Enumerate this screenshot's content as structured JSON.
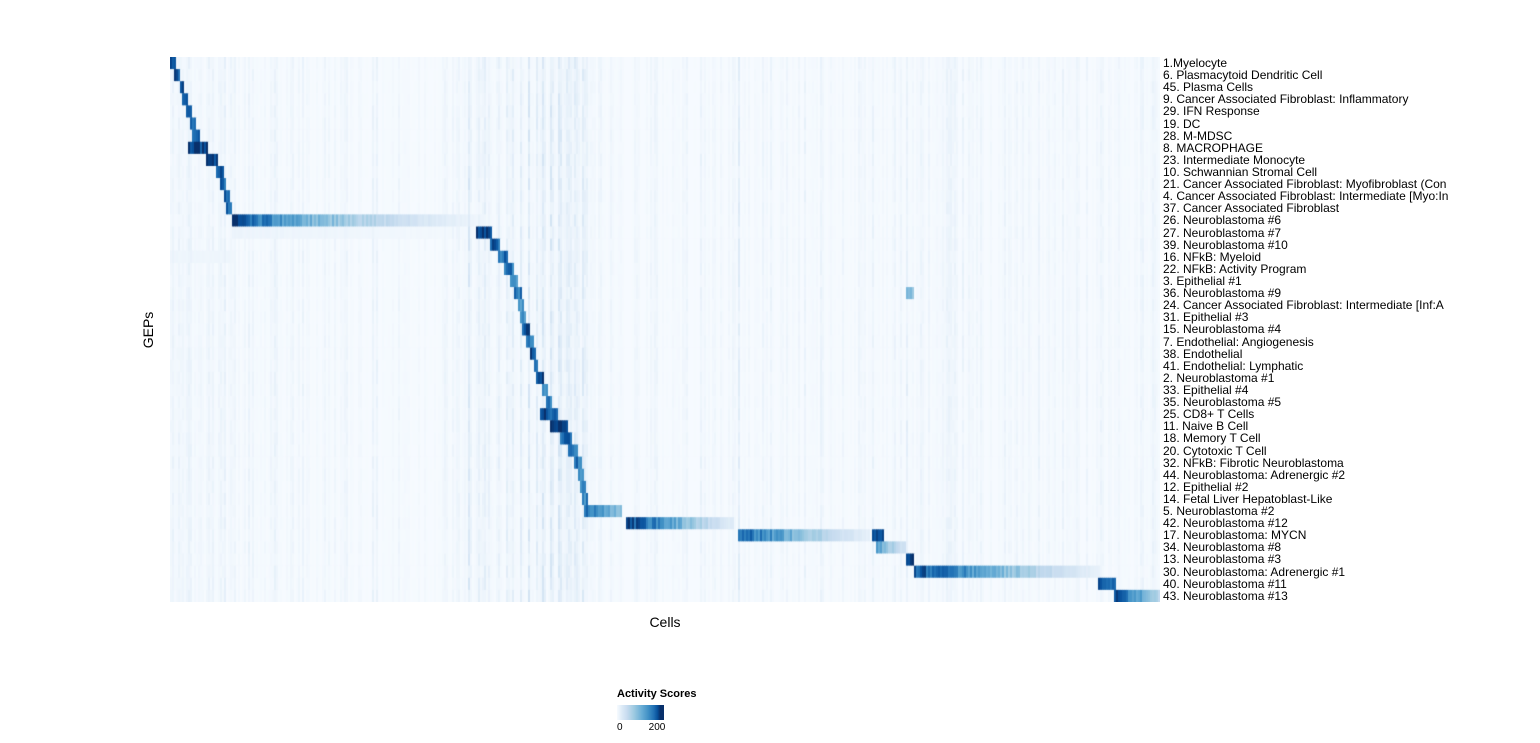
{
  "figure": {
    "background": "#ffffff"
  },
  "chart_data": {
    "type": "heatmap",
    "title": "",
    "xlabel": "Cells",
    "ylabel": "GEPs",
    "legend_position": "bottom",
    "colorbar": {
      "title": "Activity Scores",
      "min": 0,
      "max": 200,
      "ticks": [
        "0",
        "200"
      ]
    },
    "colormap": [
      "#f7fbff",
      "#deebf7",
      "#c6dbef",
      "#9ecae1",
      "#6baed6",
      "#4292c6",
      "#2171b5",
      "#08519c",
      "#08306b"
    ],
    "colormap_positions": [
      0,
      0.18,
      0.33,
      0.46,
      0.58,
      0.7,
      0.8,
      0.9,
      1.0
    ],
    "colorbar_gradient_positions": [
      0,
      0.1,
      0.22,
      0.36,
      0.52,
      0.66,
      0.78,
      0.86,
      0.92
    ],
    "rows": [
      {
        "label": "1.Myelocyte",
        "blocks": [
          [
            0.0,
            0.007,
            210,
            210
          ]
        ]
      },
      {
        "label": "6. Plasmacytoid Dendritic Cell",
        "blocks": [
          [
            0.005,
            0.011,
            200,
            200
          ]
        ]
      },
      {
        "label": "45. Plasma Cells",
        "blocks": [
          [
            0.01,
            0.014,
            210,
            210
          ]
        ]
      },
      {
        "label": "9. Cancer Associated Fibroblast: Inflammatory",
        "blocks": [
          [
            0.012,
            0.019,
            185,
            185
          ]
        ]
      },
      {
        "label": "29. IFN Response",
        "blocks": [
          [
            0.016,
            0.023,
            195,
            195
          ]
        ]
      },
      {
        "label": "19. DC",
        "blocks": [
          [
            0.02,
            0.027,
            185,
            185
          ]
        ]
      },
      {
        "label": "28. M-MDSC",
        "blocks": [
          [
            0.023,
            0.031,
            195,
            195
          ]
        ]
      },
      {
        "label": "8. MACROPHAGE",
        "blocks": [
          [
            0.018,
            0.038,
            215,
            215
          ]
        ]
      },
      {
        "label": "23. Intermediate Monocyte",
        "blocks": [
          [
            0.036,
            0.049,
            205,
            205
          ]
        ]
      },
      {
        "label": "10. Schwannian Stromal Cell",
        "blocks": [
          [
            0.047,
            0.054,
            195,
            195
          ]
        ]
      },
      {
        "label": "21. Cancer Associated Fibroblast: Myofibroblast (Con",
        "blocks": [
          [
            0.051,
            0.057,
            185,
            185
          ]
        ]
      },
      {
        "label": "4. Cancer Associated Fibroblast: Intermediate [Myo:In",
        "blocks": [
          [
            0.054,
            0.06,
            185,
            185
          ]
        ]
      },
      {
        "label": "37. Cancer Associated Fibroblast",
        "blocks": [
          [
            0.057,
            0.063,
            195,
            195
          ]
        ]
      },
      {
        "label": "26. Neuroblastoma #6",
        "blocks": [
          [
            0.062,
            0.12,
            215,
            140
          ],
          [
            0.12,
            0.315,
            140,
            12
          ]
        ]
      },
      {
        "label": "27. Neuroblastoma #7",
        "blocks": [
          [
            0.062,
            0.31,
            18,
            6
          ],
          [
            0.31,
            0.326,
            210,
            210
          ]
        ]
      },
      {
        "label": "39. Neuroblastoma #10",
        "blocks": [
          [
            0.323,
            0.334,
            195,
            195
          ]
        ]
      },
      {
        "label": "16. NFkB: Myeloid",
        "blocks": [
          [
            0.0,
            0.062,
            14,
            14
          ],
          [
            0.331,
            0.341,
            185,
            185
          ]
        ]
      },
      {
        "label": "22. NFkB: Activity Program",
        "blocks": [
          [
            0.338,
            0.347,
            175,
            175
          ]
        ]
      },
      {
        "label": "3. Epithelial #1",
        "blocks": [
          [
            0.344,
            0.351,
            155,
            155
          ]
        ]
      },
      {
        "label": "36. Neuroblastoma #9",
        "blocks": [
          [
            0.348,
            0.355,
            175,
            175
          ],
          [
            0.744,
            0.751,
            110,
            110
          ]
        ]
      },
      {
        "label": "24. Cancer Associated Fibroblast: Intermediate [Inf:A",
        "blocks": [
          [
            0.351,
            0.357,
            145,
            145
          ]
        ]
      },
      {
        "label": "31. Epithelial #3",
        "blocks": [
          [
            0.354,
            0.359,
            155,
            155
          ]
        ]
      },
      {
        "label": "15. Neuroblastoma #4",
        "blocks": [
          [
            0.356,
            0.363,
            205,
            205
          ]
        ]
      },
      {
        "label": "7. Endothelial: Angiogenesis",
        "blocks": [
          [
            0.36,
            0.367,
            175,
            175
          ]
        ]
      },
      {
        "label": "38. Endothelial",
        "blocks": [
          [
            0.363,
            0.37,
            205,
            205
          ]
        ]
      },
      {
        "label": "41. Endothelial: Lymphatic",
        "blocks": [
          [
            0.367,
            0.372,
            185,
            185
          ]
        ]
      },
      {
        "label": "2. Neuroblastoma #1",
        "blocks": [
          [
            0.37,
            0.377,
            215,
            215
          ]
        ]
      },
      {
        "label": "33. Epithelial #4",
        "blocks": [
          [
            0.375,
            0.381,
            165,
            165
          ]
        ]
      },
      {
        "label": "35. Neuroblastoma #5",
        "blocks": [
          [
            0.379,
            0.385,
            175,
            175
          ]
        ]
      },
      {
        "label": "25. CD8+ T Cells",
        "blocks": [
          [
            0.373,
            0.391,
            205,
            205
          ]
        ]
      },
      {
        "label": "11. Naive B Cell",
        "blocks": [
          [
            0.383,
            0.403,
            215,
            215
          ]
        ]
      },
      {
        "label": "18. Memory T Cell",
        "blocks": [
          [
            0.393,
            0.407,
            195,
            195
          ]
        ]
      },
      {
        "label": "20. Cytotoxic T Cell",
        "blocks": [
          [
            0.403,
            0.413,
            185,
            185
          ]
        ]
      },
      {
        "label": "32. NFkB: Fibrotic Neuroblastoma",
        "blocks": [
          [
            0.409,
            0.416,
            175,
            175
          ]
        ]
      },
      {
        "label": "44. Neuroblastoma: Adrenergic #2",
        "blocks": [
          [
            0.413,
            0.418,
            165,
            165
          ]
        ]
      },
      {
        "label": "12. Epithelial #2",
        "blocks": [
          [
            0.415,
            0.42,
            155,
            155
          ]
        ]
      },
      {
        "label": "14. Fetal Liver Hepatoblast-Like",
        "blocks": [
          [
            0.417,
            0.422,
            165,
            165
          ]
        ]
      },
      {
        "label": "5. Neuroblastoma #2",
        "blocks": [
          [
            0.419,
            0.457,
            180,
            110
          ]
        ]
      },
      {
        "label": "42. Neuroblastoma #12",
        "blocks": [
          [
            0.461,
            0.57,
            215,
            35
          ]
        ]
      },
      {
        "label": "17. Neuroblastoma: MYCN",
        "blocks": [
          [
            0.574,
            0.708,
            195,
            25
          ],
          [
            0.71,
            0.722,
            205,
            205
          ]
        ]
      },
      {
        "label": "34. Neuroblastoma #8",
        "blocks": [
          [
            0.714,
            0.743,
            140,
            55
          ]
        ]
      },
      {
        "label": "13. Neuroblastoma #3",
        "blocks": [
          [
            0.743,
            0.751,
            210,
            210
          ]
        ]
      },
      {
        "label": "30. Neuroblastoma: Adrenergic #1",
        "blocks": [
          [
            0.751,
            0.94,
            205,
            25
          ]
        ]
      },
      {
        "label": "40. Neuroblastoma #11",
        "blocks": [
          [
            0.937,
            0.956,
            195,
            195
          ]
        ]
      },
      {
        "label": "43. Neuroblastoma #13",
        "blocks": [
          [
            0.954,
            1.0,
            205,
            85
          ]
        ]
      }
    ],
    "streak_columns": [
      [
        0.02,
        18
      ],
      [
        0.04,
        18
      ],
      [
        0.056,
        20
      ],
      [
        0.302,
        22
      ],
      [
        0.318,
        26
      ],
      [
        0.34,
        30
      ],
      [
        0.347,
        26
      ],
      [
        0.355,
        34
      ],
      [
        0.362,
        30
      ],
      [
        0.37,
        34
      ],
      [
        0.378,
        30
      ],
      [
        0.386,
        34
      ],
      [
        0.394,
        30
      ],
      [
        0.402,
        26
      ],
      [
        0.41,
        26
      ],
      [
        0.418,
        22
      ],
      [
        0.575,
        26
      ],
      [
        0.71,
        22
      ],
      [
        0.744,
        30
      ],
      [
        0.94,
        22
      ]
    ]
  }
}
